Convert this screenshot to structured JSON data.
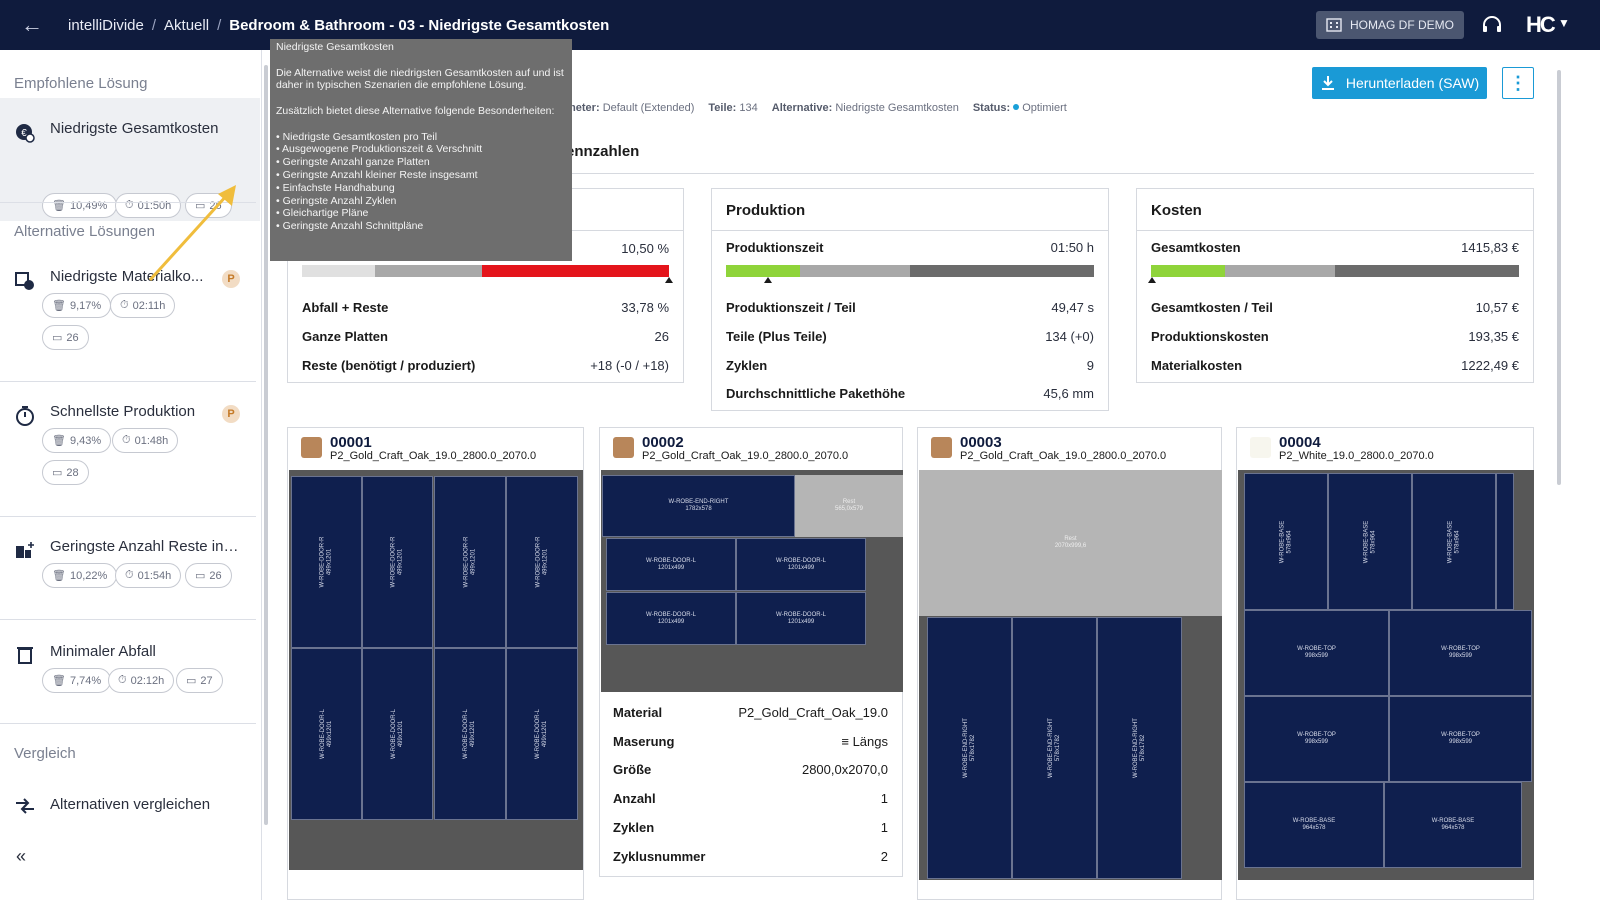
{
  "topbar": {
    "breadcrumb": [
      "intelliDivide",
      "Aktuell",
      "Bedroom & Bathroom - 03 - Niedrigste Gesamtkosten"
    ],
    "tenant": "HOMAG DF DEMO",
    "logo": "HC"
  },
  "sidebar": {
    "recommended_heading": "Empfohlene Lösung",
    "alternatives_heading": "Alternative Lösungen",
    "compare_heading": "Vergleich",
    "solutions": [
      {
        "title": "Niedrigste Gesamtkosten",
        "waste": "10,49%",
        "time": "01:50h",
        "boards": "26"
      },
      {
        "title": "Niedrigste Materialko...",
        "waste": "9,17%",
        "time": "02:11h",
        "boards": "26"
      },
      {
        "title": "Schnellste Produktion",
        "waste": "9,43%",
        "time": "01:48h",
        "boards": "28"
      },
      {
        "title": "Geringste Anzahl Reste ins...",
        "waste": "10,22%",
        "time": "01:54h",
        "boards": "26"
      },
      {
        "title": "Minimaler Abfall",
        "waste": "7,74%",
        "time": "02:12h",
        "boards": "27"
      }
    ],
    "compare_label": "Alternativen vergleichen",
    "badge": "P"
  },
  "tooltip": {
    "title": "Niedrigste Gesamtkosten",
    "para1": "Die Alternative weist die niedrigsten Gesamtkosten auf und ist daher in typischen Szenarien die empfohlene Lösung.",
    "para2": "Zusätzlich bietet diese Alternative folgende Besonderheiten:",
    "bullets": [
      "• Niedrigste Gesamtkosten pro Teil",
      "• Ausgewogene Produktionszeit & Verschnitt",
      "• Geringste Anzahl ganze Platten",
      "• Geringste Anzahl kleiner Reste insgesamt",
      "• Einfachste Handhabung",
      "• Geringste Anzahl Zyklen",
      "• Gleichartige Pläne",
      "• Geringste Anzahl Schnittpläne"
    ]
  },
  "meta": {
    "param_label": "meter:",
    "param_value": "Default (Extended)",
    "parts_label": "Teile:",
    "parts_value": "134",
    "alt_label": "Alternative:",
    "alt_value": "Niedrigste Gesamtkosten",
    "status_label": "Status:",
    "status_value": "Optimiert"
  },
  "actions": {
    "download": "Herunterladen (SAW)",
    "more": "⋮"
  },
  "kpi_heading": "ennzahlen",
  "cards": {
    "material": {
      "first_value": "10,50 %",
      "rows": [
        {
          "label": "Abfall + Reste",
          "value": "33,78 %"
        },
        {
          "label": "Ganze Platten",
          "value": "26"
        },
        {
          "label": "Reste (benötigt / produziert)",
          "value": "+18 (-0 / +18)"
        }
      ]
    },
    "production": {
      "title": "Produktion",
      "head_label": "Produktionszeit",
      "head_value": "01:50 h",
      "rows": [
        {
          "label": "Produktionszeit / Teil",
          "value": "49,47 s"
        },
        {
          "label": "Teile (Plus Teile)",
          "value": "134 (+0)"
        },
        {
          "label": "Zyklen",
          "value": "9"
        },
        {
          "label": "Durchschnittliche Pakethöhe",
          "value": "45,6 mm"
        }
      ]
    },
    "costs": {
      "title": "Kosten",
      "head_label": "Gesamtkosten",
      "head_value": "1415,83 €",
      "rows": [
        {
          "label": "Gesamtkosten / Teil",
          "value": "10,57 €"
        },
        {
          "label": "Produktionskosten",
          "value": "193,35 €"
        },
        {
          "label": "Materialkosten",
          "value": "1222,49 €"
        }
      ]
    }
  },
  "boards": [
    {
      "id": "00001",
      "material": "P2_Gold_Craft_Oak_19.0_2800.0_2070.0"
    },
    {
      "id": "00002",
      "material": "P2_Gold_Craft_Oak_19.0_2800.0_2070.0"
    },
    {
      "id": "00003",
      "material": "P2_Gold_Craft_Oak_19.0_2800.0_2070.0"
    },
    {
      "id": "00004",
      "material": "P2_White_19.0_2800.0_2070.0"
    }
  ],
  "parts": {
    "door_r": "W-ROBE-DOOR-R\n499x1201",
    "door_l": "W-ROBE-DOOR-L\n499x1201",
    "end_right_h": "W-ROBE-END-RIGHT\n1782x578",
    "rest_small": "Rest\n565,0x579",
    "door_l_h": "W-ROBE-DOOR-L\n1201x499",
    "rest_big": "Rest\n2070x999,6",
    "end_right_v": "W-ROBE-END-RIGHT\n578x1782",
    "base_v": "W-ROBE-BASE\n578x964",
    "top_h": "W-ROBE-TOP\n998x599",
    "base_h": "W-ROBE-BASE\n964x578"
  },
  "board_details": {
    "rows": [
      {
        "label": "Material",
        "value": "P2_Gold_Craft_Oak_19.0"
      },
      {
        "label": "Maserung",
        "value": "Längs"
      },
      {
        "label": "Größe",
        "value": "2800,0x2070,0"
      },
      {
        "label": "Anzahl",
        "value": "1"
      },
      {
        "label": "Zyklen",
        "value": "1"
      },
      {
        "label": "Zyklusnummer",
        "value": "2"
      }
    ]
  },
  "colors": {
    "topbar": "#0f1b3d",
    "accent": "#1a9ad6",
    "bar_green": "#8fd43a",
    "bar_red": "#e4141b",
    "part": "#0f1f4e"
  }
}
